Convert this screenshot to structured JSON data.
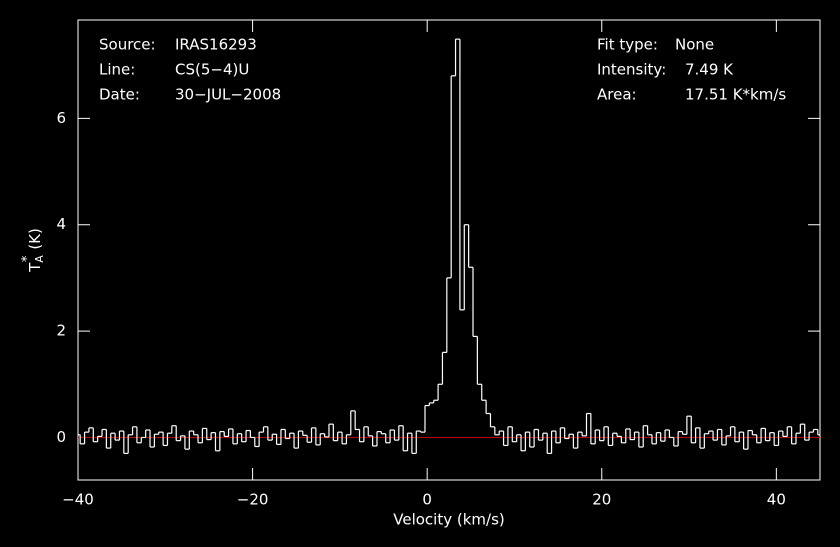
{
  "chart_data": {
    "type": "step",
    "xlabel": "Velocity (km/s)",
    "ylabel": {
      "main": "T",
      "sub": "A",
      "sup": "*",
      "unit": "(K)"
    },
    "info_left": [
      {
        "label": "Source:",
        "value": "IRAS16293"
      },
      {
        "label": "Line:",
        "value": "CS(5−4)U"
      },
      {
        "label": "Date:",
        "value": "30−JUL−2008"
      }
    ],
    "info_right": [
      {
        "label": "Fit type:",
        "value": "None"
      },
      {
        "label": "Intensity:",
        "value": "7.49 K"
      },
      {
        "label": "Area:",
        "value": "17.51 K*km/s"
      }
    ],
    "xlim": [
      -40,
      45
    ],
    "ylim": [
      -0.8,
      7.85
    ],
    "xticks": [
      {
        "value": -40,
        "label": "−40"
      },
      {
        "value": -20,
        "label": "−20"
      },
      0,
      20,
      40
    ],
    "yticks": [
      0,
      2,
      4,
      6
    ],
    "color": "#ffffff",
    "baseline": {
      "value": 0,
      "color": "#c00000"
    },
    "x": [
      -40,
      -39.5,
      -39,
      -38.5,
      -38,
      -37.5,
      -37,
      -36.5,
      -36,
      -35.5,
      -35,
      -34.5,
      -34,
      -33.5,
      -33,
      -32.5,
      -32,
      -31.5,
      -31,
      -30.5,
      -30,
      -29.5,
      -29,
      -28.5,
      -28,
      -27.5,
      -27,
      -26.5,
      -26,
      -25.5,
      -25,
      -24.5,
      -24,
      -23.5,
      -23,
      -22.5,
      -22,
      -21.5,
      -21,
      -20.5,
      -20,
      -19.5,
      -19,
      -18.5,
      -18,
      -17.5,
      -17,
      -16.5,
      -16,
      -15.5,
      -15,
      -14.5,
      -14,
      -13.5,
      -13,
      -12.5,
      -12,
      -11.5,
      -11,
      -10.5,
      -10,
      -9.5,
      -9,
      -8.5,
      -8,
      -7.5,
      -7,
      -6.5,
      -6,
      -5.5,
      -5,
      -4.5,
      -4,
      -3.5,
      -3,
      -2.5,
      -2,
      -1.5,
      -1,
      -0.5,
      0,
      0.5,
      1,
      1.5,
      2,
      2.5,
      3,
      3.5,
      4,
      4.5,
      5,
      5.5,
      6,
      6.5,
      7,
      7.5,
      8,
      8.5,
      9,
      9.5,
      10,
      10.5,
      11,
      11.5,
      12,
      12.5,
      13,
      13.5,
      14,
      14.5,
      15,
      15.5,
      16,
      16.5,
      17,
      17.5,
      18,
      18.5,
      19,
      19.5,
      20,
      20.5,
      21,
      21.5,
      22,
      22.5,
      23,
      23.5,
      24,
      24.5,
      25,
      25.5,
      26,
      26.5,
      27,
      27.5,
      28,
      28.5,
      29,
      29.5,
      30,
      30.5,
      31,
      31.5,
      32,
      32.5,
      33,
      33.5,
      34,
      34.5,
      35,
      35.5,
      36,
      36.5,
      37,
      37.5,
      38,
      38.5,
      39,
      39.5,
      40,
      40.5,
      41,
      41.5,
      42,
      42.5,
      43,
      43.5,
      44,
      44.5,
      45
    ],
    "values": [
      0.05,
      -0.12,
      0.1,
      0.18,
      -0.08,
      0.02,
      0.15,
      -0.2,
      0.08,
      -0.05,
      0.12,
      -0.3,
      0.05,
      0.2,
      -0.1,
      0.0,
      0.14,
      -0.18,
      0.06,
      0.1,
      -0.15,
      0.08,
      0.22,
      -0.06,
      0.03,
      -0.22,
      0.12,
      0.05,
      -0.1,
      0.17,
      -0.04,
      0.09,
      -0.25,
      0.11,
      0.02,
      0.16,
      -0.12,
      0.07,
      -0.08,
      0.13,
      0.0,
      -0.17,
      0.1,
      0.2,
      -0.05,
      0.06,
      -0.13,
      0.15,
      -0.02,
      0.08,
      -0.2,
      0.12,
      0.04,
      -0.09,
      0.18,
      -0.14,
      0.07,
      0.01,
      0.25,
      -0.06,
      0.1,
      -0.12,
      0.05,
      0.5,
      0.15,
      -0.08,
      0.2,
      0.03,
      -0.16,
      0.11,
      0.07,
      -0.1,
      0.14,
      -0.05,
      0.22,
      -0.25,
      0.08,
      -0.3,
      0.12,
      0.1,
      0.6,
      0.65,
      0.7,
      1.0,
      1.6,
      3.0,
      6.8,
      7.49,
      2.4,
      4.0,
      3.2,
      1.9,
      1.0,
      0.7,
      0.45,
      0.2,
      0.05,
      0.12,
      -0.15,
      0.2,
      -0.08,
      0.05,
      -0.25,
      0.1,
      -0.18,
      0.15,
      -0.05,
      0.08,
      -0.3,
      0.12,
      -0.1,
      0.18,
      -0.02,
      0.06,
      -0.2,
      0.1,
      0.03,
      0.45,
      -0.12,
      0.14,
      -0.06,
      0.2,
      -0.15,
      0.08,
      0.02,
      -0.1,
      0.16,
      -0.04,
      0.1,
      -0.18,
      0.22,
      0.05,
      -0.12,
      0.09,
      -0.07,
      0.14,
      0.0,
      -0.16,
      0.11,
      0.06,
      0.4,
      -0.1,
      0.18,
      -0.2,
      0.07,
      0.12,
      -0.05,
      0.15,
      -0.14,
      0.03,
      0.2,
      -0.08,
      0.1,
      -0.22,
      0.13,
      0.05,
      -0.1,
      0.17,
      -0.06,
      0.09,
      -0.15,
      0.12,
      0.02,
      0.2,
      -0.12,
      0.08,
      0.25,
      -0.05,
      0.1,
      0.15,
      0.05
    ]
  }
}
